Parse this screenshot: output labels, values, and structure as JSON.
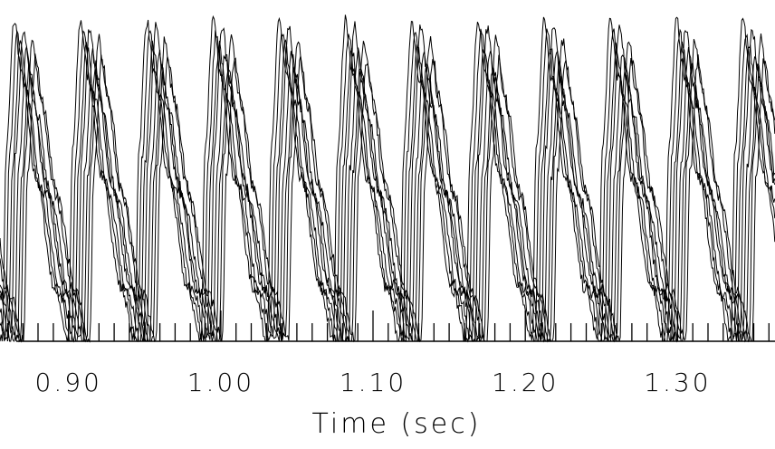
{
  "chart_data": {
    "type": "line",
    "xlabel": "Time (sec)",
    "ylabel": "",
    "title": "",
    "xlim": [
      0.855,
      1.364
    ],
    "ylim": [
      0,
      1
    ],
    "tick_step": 0.01,
    "major_ticks": [
      0.9,
      1.0,
      1.1,
      1.2,
      1.3
    ],
    "tick_labels": [
      "0.90",
      "1.00",
      "1.10",
      "1.20",
      "1.30"
    ],
    "grid": false,
    "legend": "none",
    "line_color": "#000000",
    "period_sec": 0.0435,
    "phase_start_sec": 0.9,
    "waveform_shape": {
      "phase": [
        0.0,
        0.06,
        0.18,
        0.3,
        0.5,
        0.8,
        1.0
      ],
      "amplitude": [
        0.0,
        0.58,
        0.97,
        0.8,
        0.5,
        0.16,
        0.0
      ]
    },
    "series": [
      {
        "delay": 0.0,
        "amplitude": 1.0
      },
      {
        "delay": 0.002,
        "amplitude": 0.96
      },
      {
        "delay": 0.004,
        "amplitude": 0.92
      },
      {
        "delay": 0.006,
        "amplitude": 0.98
      },
      {
        "delay": 0.008,
        "amplitude": 0.9
      },
      {
        "delay": 0.01,
        "amplitude": 0.86
      },
      {
        "delay": 0.012,
        "amplitude": 0.94
      },
      {
        "delay": 0.014,
        "amplitude": 0.88
      }
    ]
  }
}
